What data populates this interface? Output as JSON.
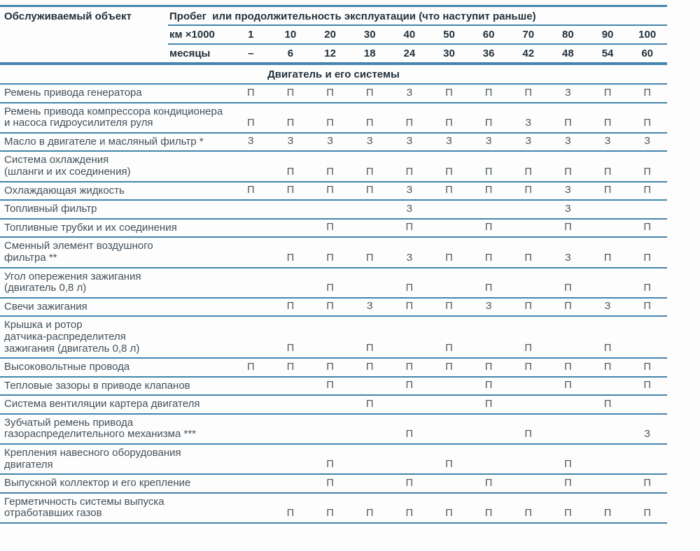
{
  "table": {
    "object_header": "Обслуживаемый объект",
    "span_header": "Пробег  или продолжительность эксплуатации (что наступит раньше)",
    "km_label": "км ×1000",
    "km_values": [
      "1",
      "10",
      "20",
      "30",
      "40",
      "50",
      "60",
      "70",
      "80",
      "90",
      "100"
    ],
    "months_label": "месяцы",
    "months_values": [
      "–",
      "6",
      "12",
      "18",
      "24",
      "30",
      "36",
      "42",
      "48",
      "54",
      "60"
    ],
    "section_title": "Двигатель и его системы",
    "rows": [
      {
        "label": "Ремень привода генератора",
        "marks": [
          "П",
          "П",
          "П",
          "П",
          "З",
          "П",
          "П",
          "П",
          "З",
          "П",
          "П"
        ]
      },
      {
        "label": "Ремень привода компрессора кондиционера\nи насоса гидроусилителя руля",
        "marks": [
          "П",
          "П",
          "П",
          "П",
          "П",
          "П",
          "П",
          "З",
          "П",
          "П",
          "П"
        ]
      },
      {
        "label": "Масло в двигателе и масляный фильтр *",
        "marks": [
          "З",
          "З",
          "З",
          "З",
          "З",
          "З",
          "З",
          "З",
          "З",
          "З",
          "З"
        ]
      },
      {
        "label": "Система охлаждения\n(шланги и их соединения)",
        "marks": [
          "",
          "П",
          "П",
          "П",
          "П",
          "П",
          "П",
          "П",
          "П",
          "П",
          "П"
        ]
      },
      {
        "label": "Охлаждающая жидкость",
        "marks": [
          "П",
          "П",
          "П",
          "П",
          "З",
          "П",
          "П",
          "П",
          "З",
          "П",
          "П"
        ]
      },
      {
        "label": "Топливный фильтр",
        "marks": [
          "",
          "",
          "",
          "",
          "З",
          "",
          "",
          "",
          "З",
          "",
          ""
        ]
      },
      {
        "label": "Топливные трубки и их соединения",
        "marks": [
          "",
          "",
          "П",
          "",
          "П",
          "",
          "П",
          "",
          "П",
          "",
          "П"
        ]
      },
      {
        "label": "Сменный элемент воздушного\nфильтра **",
        "marks": [
          "",
          "П",
          "П",
          "П",
          "З",
          "П",
          "П",
          "П",
          "З",
          "П",
          "П"
        ]
      },
      {
        "label": "Угол опережения зажигания\n(двигатель 0,8 л)",
        "marks": [
          "",
          "",
          "П",
          "",
          "П",
          "",
          "П",
          "",
          "П",
          "",
          "П"
        ]
      },
      {
        "label": "Свечи зажигания",
        "marks": [
          "",
          "П",
          "П",
          "З",
          "П",
          "П",
          "З",
          "П",
          "П",
          "З",
          "П"
        ]
      },
      {
        "label": "Крышка и ротор\nдатчика-распределителя\nзажигания (двигатель 0,8 л)",
        "marks": [
          "",
          "П",
          "",
          "П",
          "",
          "П",
          "",
          "П",
          "",
          "П",
          ""
        ]
      },
      {
        "label": "Высоковольтные провода",
        "marks": [
          "П",
          "П",
          "П",
          "П",
          "П",
          "П",
          "П",
          "П",
          "П",
          "П",
          "П"
        ]
      },
      {
        "label": "Тепловые зазоры в приводе клапанов",
        "marks": [
          "",
          "",
          "П",
          "",
          "П",
          "",
          "П",
          "",
          "П",
          "",
          "П"
        ]
      },
      {
        "label": "Система вентиляции картера двигателя",
        "marks": [
          "",
          "",
          "",
          "П",
          "",
          "",
          "П",
          "",
          "",
          "П",
          ""
        ]
      },
      {
        "label": "Зубчатый ремень привода\nгазораспределительного механизма ***",
        "marks": [
          "",
          "",
          "",
          "",
          "П",
          "",
          "",
          "П",
          "",
          "",
          "З"
        ]
      },
      {
        "label": "Крепления навесного оборудования\nдвигателя",
        "marks": [
          "",
          "",
          "П",
          "",
          "",
          "П",
          "",
          "",
          "П",
          "",
          ""
        ]
      },
      {
        "label": "Выпускной коллектор и его крепление",
        "marks": [
          "",
          "",
          "П",
          "",
          "П",
          "",
          "П",
          "",
          "П",
          "",
          "П"
        ]
      },
      {
        "label": "Герметичность системы выпуска\nотработавших газов",
        "marks": [
          "",
          "П",
          "П",
          "П",
          "П",
          "П",
          "П",
          "П",
          "П",
          "П",
          "П"
        ]
      }
    ]
  },
  "colors": {
    "rule_blue": "#4485ad",
    "heading_text": "#22313b",
    "body_text": "#43505a"
  }
}
